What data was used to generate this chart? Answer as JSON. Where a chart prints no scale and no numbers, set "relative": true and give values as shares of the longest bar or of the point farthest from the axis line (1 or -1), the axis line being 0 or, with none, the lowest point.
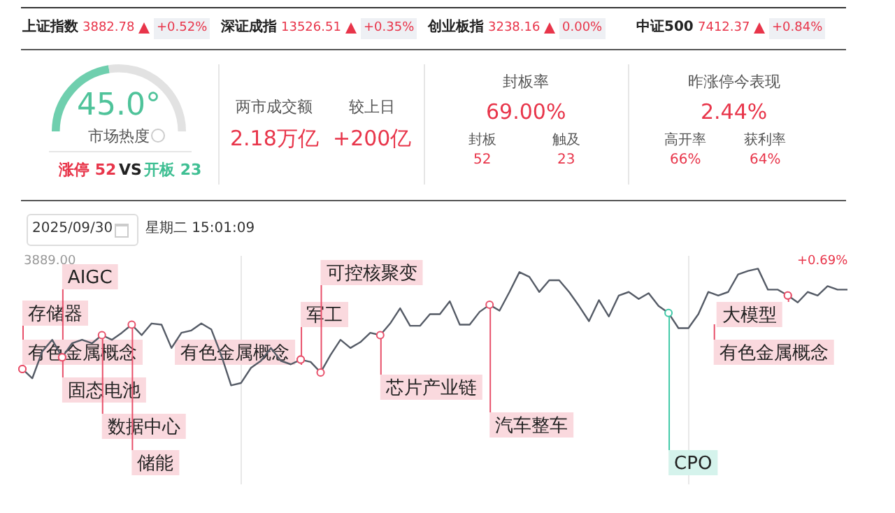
{
  "chart_data": [
    {
      "type": "other",
      "annotations": [
        "上证指数",
        "3882.78",
        "+0.52%",
        "深证成指",
        "13526.51",
        "+0.35%",
        "创业板指",
        "3238.16",
        "0.00%",
        "中证500",
        "7412.37",
        "+0.84%"
      ]
    },
    {
      "type": "donut",
      "categories": [
        null,
        null
      ],
      "values": [
        45,
        55
      ],
      "colors": [
        "#6fcfae",
        "#e2e2e2"
      ],
      "annotations": [
        "45.0°",
        "市场热度",
        "涨停 52",
        "VS",
        "开板 23"
      ]
    },
    {
      "type": "other",
      "annotations": [
        "两市成交额",
        "2.18万亿",
        "较上日",
        "+200亿",
        "封板率",
        "69.00%",
        "封板",
        "52",
        "触及",
        "23",
        "昨涨停今表现",
        "2.44%",
        "高开率",
        "66%",
        "获利率",
        "64%"
      ]
    },
    {
      "type": "line",
      "relative": true,
      "grid": "x",
      "categories": [
        null,
        null,
        null,
        null,
        null,
        null,
        null,
        null,
        null,
        null,
        null,
        null,
        null,
        null,
        null,
        null,
        null,
        null,
        null,
        null,
        null,
        null,
        null,
        null,
        null,
        null,
        null,
        null,
        null,
        null,
        null,
        null,
        null,
        null,
        null,
        null,
        null,
        null,
        null,
        null,
        null,
        null,
        null,
        null,
        null,
        null,
        null,
        null,
        null,
        null,
        null,
        null,
        null,
        null,
        null,
        null,
        null,
        null,
        null,
        null,
        null,
        null,
        null,
        null,
        null,
        null,
        null,
        null,
        null,
        null,
        null,
        null,
        null,
        null,
        null,
        null,
        null,
        null,
        null,
        null,
        null,
        null,
        null,
        null
      ],
      "series": [
        {
          "color": "#555b66",
          "values": [
            0.14,
            0.06,
            0.29,
            0.39,
            0.24,
            0.36,
            0.39,
            0.36,
            0.43,
            0.39,
            0.45,
            0.52,
            0.43,
            0.53,
            0.52,
            0.32,
            0.45,
            0.47,
            0.53,
            0.48,
            0.26,
            0,
            0.02,
            0.15,
            0.21,
            0.32,
            0.21,
            0.18,
            0.22,
            0.2,
            0.11,
            0.26,
            0.39,
            0.32,
            0.37,
            0.45,
            0.43,
            0.53,
            0.66,
            0.51,
            0.51,
            0.61,
            0.61,
            0.72,
            0.52,
            0.52,
            0.63,
            0.69,
            0.64,
            0.8,
            0.97,
            0.93,
            0.8,
            0.9,
            0.9,
            0.8,
            0.68,
            0.55,
            0.73,
            0.59,
            0.77,
            0.8,
            0.74,
            0.79,
            0.68,
            0.62,
            0.49,
            0.49,
            0.61,
            0.8,
            0.77,
            0.8,
            0.95,
            0.98,
            1,
            0.82,
            0.82,
            0.77,
            0.71,
            0.8,
            0.77,
            0.85,
            0.82,
            0.82
          ]
        }
      ],
      "annotations": [
        "2025/09/30",
        "星期二 15:01:09",
        "3889.00",
        "+0.69%",
        "存储器",
        "AIGC",
        "有色金属概念",
        "固态电池",
        "数据中心",
        "储能",
        "有色金属概念",
        "军工",
        "可控核聚变",
        "芯片产业链",
        "汽车整车",
        "CPO",
        "大模型",
        "有色金属概念"
      ]
    }
  ]
}
